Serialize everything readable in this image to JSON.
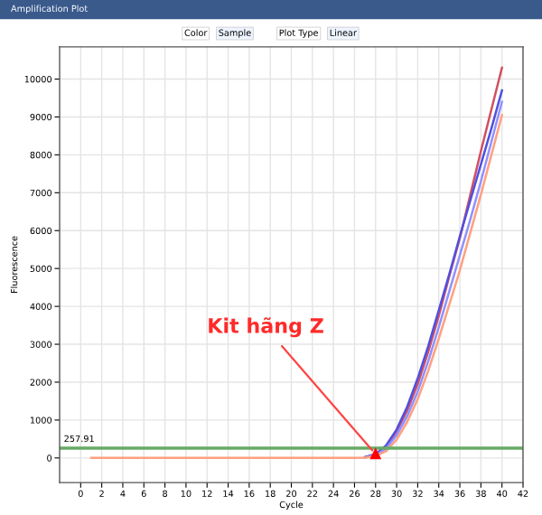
{
  "chart_data": {
    "type": "line",
    "title": "Amplification Plot",
    "xlabel": "Cycle",
    "ylabel": "Fluorescence",
    "x": [
      1,
      2,
      3,
      4,
      5,
      6,
      7,
      8,
      9,
      10,
      11,
      12,
      13,
      14,
      15,
      16,
      17,
      18,
      19,
      20,
      21,
      22,
      23,
      24,
      25,
      26,
      27,
      28,
      29,
      30,
      31,
      32,
      33,
      34,
      35,
      36,
      37,
      38,
      39,
      40
    ],
    "series": [
      {
        "color": "#d05060",
        "values": [
          null,
          null,
          null,
          null,
          null,
          null,
          null,
          null,
          null,
          null,
          null,
          null,
          null,
          null,
          null,
          null,
          null,
          null,
          null,
          null,
          null,
          null,
          null,
          null,
          null,
          null,
          20,
          90,
          300,
          700,
          1250,
          1950,
          2800,
          3750,
          4800,
          5800,
          6950,
          8100,
          9200,
          10300
        ]
      },
      {
        "color": "#5050e0",
        "values": [
          null,
          null,
          null,
          null,
          null,
          null,
          null,
          null,
          null,
          null,
          null,
          null,
          null,
          null,
          null,
          null,
          null,
          null,
          null,
          null,
          null,
          null,
          null,
          null,
          null,
          null,
          20,
          100,
          330,
          750,
          1350,
          2100,
          2950,
          3900,
          4850,
          5850,
          6800,
          7750,
          8700,
          9700
        ]
      },
      {
        "color": "#9090ff",
        "values": [
          null,
          null,
          null,
          null,
          null,
          null,
          null,
          null,
          null,
          null,
          null,
          null,
          null,
          null,
          null,
          null,
          null,
          null,
          null,
          null,
          null,
          null,
          null,
          null,
          null,
          null,
          10,
          70,
          250,
          600,
          1100,
          1750,
          2550,
          3450,
          4400,
          5350,
          6300,
          7300,
          8350,
          9400
        ]
      },
      {
        "color": "#ffa080",
        "values": [
          0,
          0,
          0,
          0,
          0,
          0,
          0,
          0,
          0,
          0,
          0,
          0,
          0,
          0,
          0,
          0,
          0,
          0,
          0,
          0,
          0,
          0,
          0,
          0,
          0,
          0,
          10,
          50,
          180,
          480,
          950,
          1550,
          2300,
          3150,
          4050,
          4950,
          5950,
          6950,
          8000,
          9050
        ]
      }
    ],
    "xlim": [
      -2,
      42
    ],
    "xticks": [
      0,
      2,
      4,
      6,
      8,
      10,
      12,
      14,
      16,
      18,
      20,
      22,
      24,
      26,
      28,
      30,
      32,
      34,
      36,
      38,
      40,
      42
    ],
    "ylim": [
      -650,
      10850
    ],
    "yticks": [
      0,
      1000,
      2000,
      3000,
      4000,
      5000,
      6000,
      7000,
      8000,
      9000,
      10000
    ],
    "grid": true,
    "marker": "none",
    "line_style": "solid",
    "ref_lines": [
      {
        "axis": "y",
        "value": 257.91,
        "label": "257.91",
        "color": "#66aa66"
      }
    ],
    "annotations": [
      {
        "text": "Kit hãng Z",
        "x": 28,
        "y": 100
      },
      "Color",
      "Sample",
      "Plot Type",
      "Linear"
    ]
  }
}
